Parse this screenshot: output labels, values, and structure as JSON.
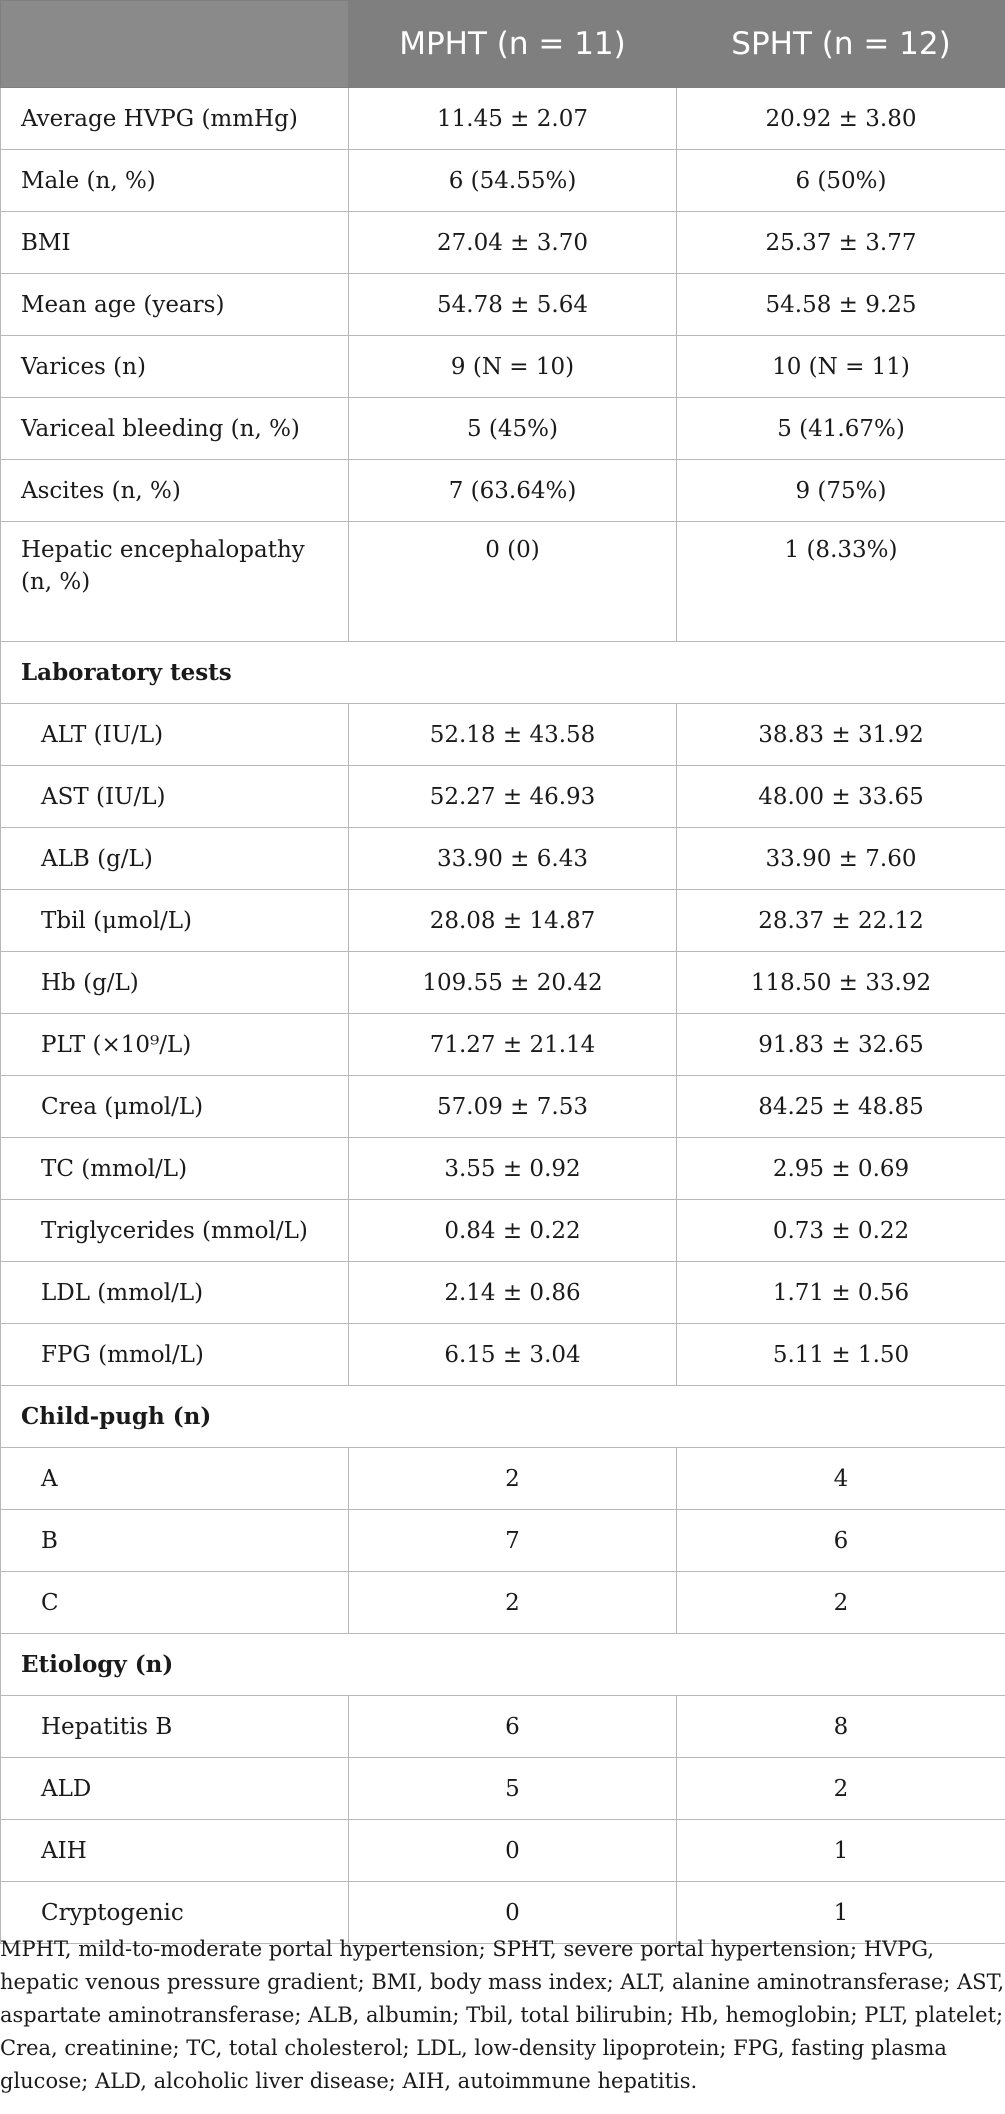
{
  "header": {
    "col1": "",
    "col2": "MPHT (n = 11)",
    "col3": "SPHT (n = 12)"
  },
  "rows": [
    {
      "type": "row",
      "label": "Average HVPG (mmHg)",
      "mpht": "11.45 ± 2.07",
      "spht": "20.92 ± 3.80"
    },
    {
      "type": "row",
      "label": "Male (n, %)",
      "mpht": "6 (54.55%)",
      "spht": "6 (50%)"
    },
    {
      "type": "row",
      "label": "BMI",
      "mpht": "27.04 ± 3.70",
      "spht": "25.37 ± 3.77"
    },
    {
      "type": "row",
      "label": "Mean age (years)",
      "mpht": "54.78 ± 5.64",
      "spht": "54.58 ± 9.25"
    },
    {
      "type": "row",
      "label": "Varices (n)",
      "mpht": "9 (N = 10)",
      "spht": "10 (N = 11)"
    },
    {
      "type": "row",
      "label": "Variceal bleeding (n, %)",
      "mpht": "5 (45%)",
      "spht": "5 (41.67%)"
    },
    {
      "type": "row",
      "label": "Ascites (n, %)",
      "mpht": "7 (63.64%)",
      "spht": "9 (75%)"
    },
    {
      "type": "two-line",
      "label": "Hepatic encephalopathy (n, %)",
      "mpht": "0 (0)",
      "spht": "1 (8.33%)"
    },
    {
      "type": "section",
      "label": "Laboratory tests"
    },
    {
      "type": "sub",
      "label": "ALT (IU/L)",
      "mpht": "52.18 ± 43.58",
      "spht": "38.83 ± 31.92"
    },
    {
      "type": "sub",
      "label": "AST (IU/L)",
      "mpht": "52.27 ± 46.93",
      "spht": "48.00 ± 33.65"
    },
    {
      "type": "sub",
      "label": "ALB (g/L)",
      "mpht": "33.90 ± 6.43",
      "spht": "33.90 ± 7.60"
    },
    {
      "type": "sub",
      "label": "Tbil (μmol/L)",
      "mpht": "28.08 ± 14.87",
      "spht": "28.37 ± 22.12"
    },
    {
      "type": "sub",
      "label": "Hb (g/L)",
      "mpht": "109.55 ± 20.42",
      "spht": "118.50 ± 33.92"
    },
    {
      "type": "sub",
      "label": "PLT (×10⁹/L)",
      "mpht": "71.27 ± 21.14",
      "spht": "91.83 ± 32.65"
    },
    {
      "type": "sub",
      "label": "Crea (μmol/L)",
      "mpht": "57.09 ± 7.53",
      "spht": "84.25 ± 48.85"
    },
    {
      "type": "sub",
      "label": "TC (mmol/L)",
      "mpht": "3.55 ± 0.92",
      "spht": "2.95 ± 0.69"
    },
    {
      "type": "sub",
      "label": "Triglycerides (mmol/L)",
      "mpht": "0.84 ± 0.22",
      "spht": "0.73 ± 0.22"
    },
    {
      "type": "sub",
      "label": "LDL (mmol/L)",
      "mpht": "2.14 ± 0.86",
      "spht": "1.71 ± 0.56"
    },
    {
      "type": "sub",
      "label": "FPG (mmol/L)",
      "mpht": "6.15 ± 3.04",
      "spht": "5.11 ± 1.50"
    },
    {
      "type": "section",
      "label": "Child-pugh (n)"
    },
    {
      "type": "sub",
      "label": "A",
      "mpht": "2",
      "spht": "4"
    },
    {
      "type": "sub",
      "label": "B",
      "mpht": "7",
      "spht": "6"
    },
    {
      "type": "sub",
      "label": "C",
      "mpht": "2",
      "spht": "2"
    },
    {
      "type": "section",
      "label": "Etiology (n)"
    },
    {
      "type": "sub",
      "label": "Hepatitis B",
      "mpht": "6",
      "spht": "8"
    },
    {
      "type": "sub",
      "label": "ALD",
      "mpht": "5",
      "spht": "2"
    },
    {
      "type": "sub",
      "label": "AIH",
      "mpht": "0",
      "spht": "1"
    },
    {
      "type": "sub",
      "label": "Cryptogenic",
      "mpht": "0",
      "spht": "1"
    }
  ],
  "footnote": "MPHT, mild-to-moderate portal hypertension; SPHT, severe portal hypertension; HVPG, hepatic venous pressure gradient; BMI, body mass index; ALT, alanine aminotransferase; AST, aspartate aminotransferase; ALB, albumin; Tbil, total bilirubin; Hb, hemoglobin; PLT, platelet; Crea, creatinine; TC, total cholesterol; LDL, low-density lipoprotein; FPG, fasting plasma glucose; ALD, alcoholic liver disease; AIH, autoimmune hepatitis."
}
